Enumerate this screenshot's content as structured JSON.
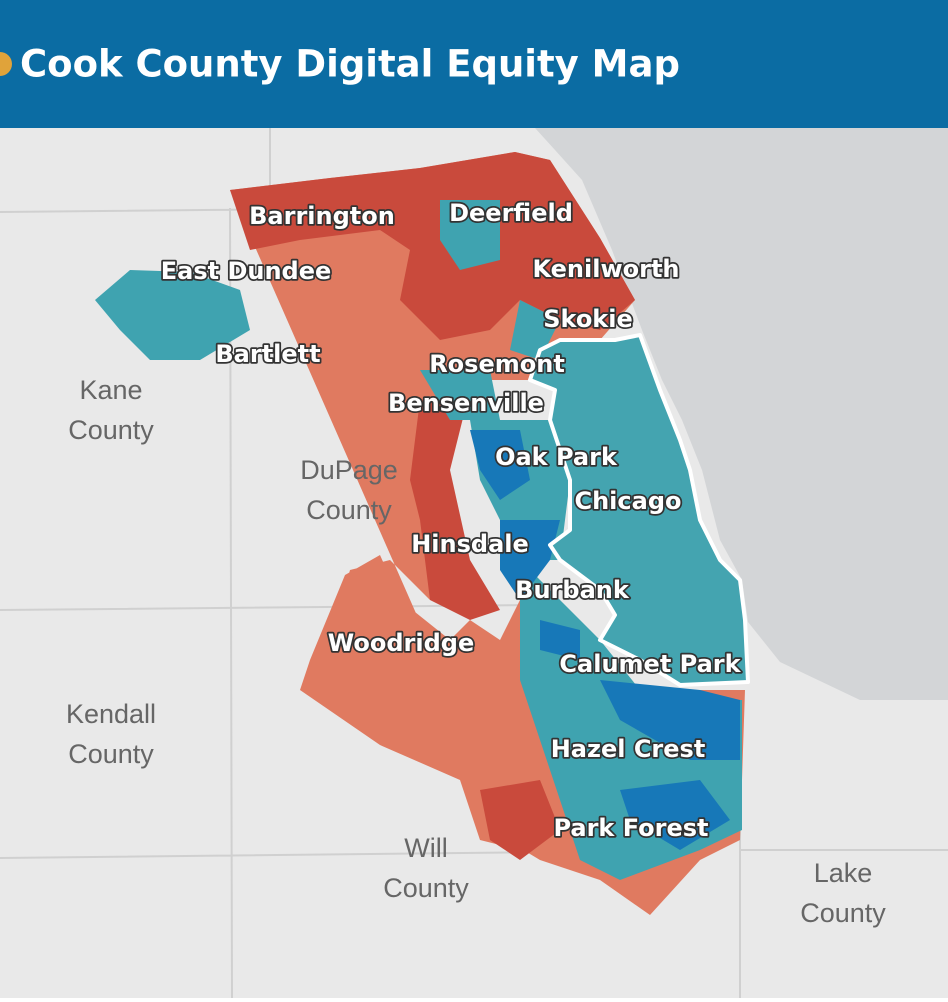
{
  "header": {
    "title": "Cook County Digital Equity Map"
  },
  "places": [
    {
      "label": "Barrington"
    },
    {
      "label": "Deerfield"
    },
    {
      "label": "East Dundee"
    },
    {
      "label": "Kenilworth"
    },
    {
      "label": "Skokie"
    },
    {
      "label": "Bartlett"
    },
    {
      "label": "Rosemont"
    },
    {
      "label": "Bensenville"
    },
    {
      "label": "Oak Park"
    },
    {
      "label": "Chicago"
    },
    {
      "label": "Hinsdale"
    },
    {
      "label": "Burbank"
    },
    {
      "label": "Woodridge"
    },
    {
      "label": "Calumet Park"
    },
    {
      "label": "Hazel Crest"
    },
    {
      "label": "Park Forest"
    }
  ],
  "counties": [
    {
      "lines": [
        "Kane",
        "County"
      ]
    },
    {
      "lines": [
        "DuPage",
        "County"
      ]
    },
    {
      "lines": [
        "Kendall",
        "County"
      ]
    },
    {
      "lines": [
        "Will",
        "County"
      ]
    },
    {
      "lines": [
        "Lake",
        "County"
      ]
    }
  ]
}
